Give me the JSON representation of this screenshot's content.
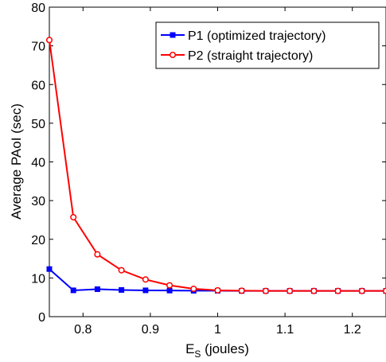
{
  "chart_data": {
    "type": "line",
    "title": "",
    "xlabel": "E",
    "xlabel_sub": "S",
    "xlabel_suffix": " (joules)",
    "ylabel": "Average PAoI (sec)",
    "xlim": [
      0.75,
      1.25
    ],
    "ylim": [
      0,
      80
    ],
    "x_ticks": [
      0.8,
      0.9,
      1,
      1.1,
      1.2
    ],
    "x_tick_labels": [
      "0.8",
      "0.9",
      "1",
      "1.1",
      "1.2"
    ],
    "y_ticks": [
      0,
      10,
      20,
      30,
      40,
      50,
      60,
      70,
      80
    ],
    "y_tick_labels": [
      "0",
      "10",
      "20",
      "30",
      "40",
      "50",
      "60",
      "70",
      "80"
    ],
    "grid": false,
    "legend_position": "top-right",
    "x": [
      0.75,
      0.7857,
      0.8214,
      0.8571,
      0.8929,
      0.9286,
      0.9643,
      1.0,
      1.0357,
      1.0714,
      1.1071,
      1.1429,
      1.1786,
      1.2143,
      1.25
    ],
    "series": [
      {
        "name": "P1 (optimized trajectory)",
        "color": "#0000ff",
        "marker": "square",
        "values": [
          12.3,
          6.8,
          7.1,
          6.9,
          6.8,
          6.75,
          6.7,
          6.7,
          6.65,
          6.65,
          6.65,
          6.65,
          6.65,
          6.65,
          6.65
        ]
      },
      {
        "name": "P2 (straight trajectory)",
        "color": "#ff0000",
        "marker": "circle",
        "values": [
          71.5,
          25.7,
          16.1,
          12.0,
          9.6,
          8.1,
          7.2,
          6.8,
          6.7,
          6.65,
          6.65,
          6.65,
          6.65,
          6.65,
          6.65
        ]
      }
    ]
  }
}
